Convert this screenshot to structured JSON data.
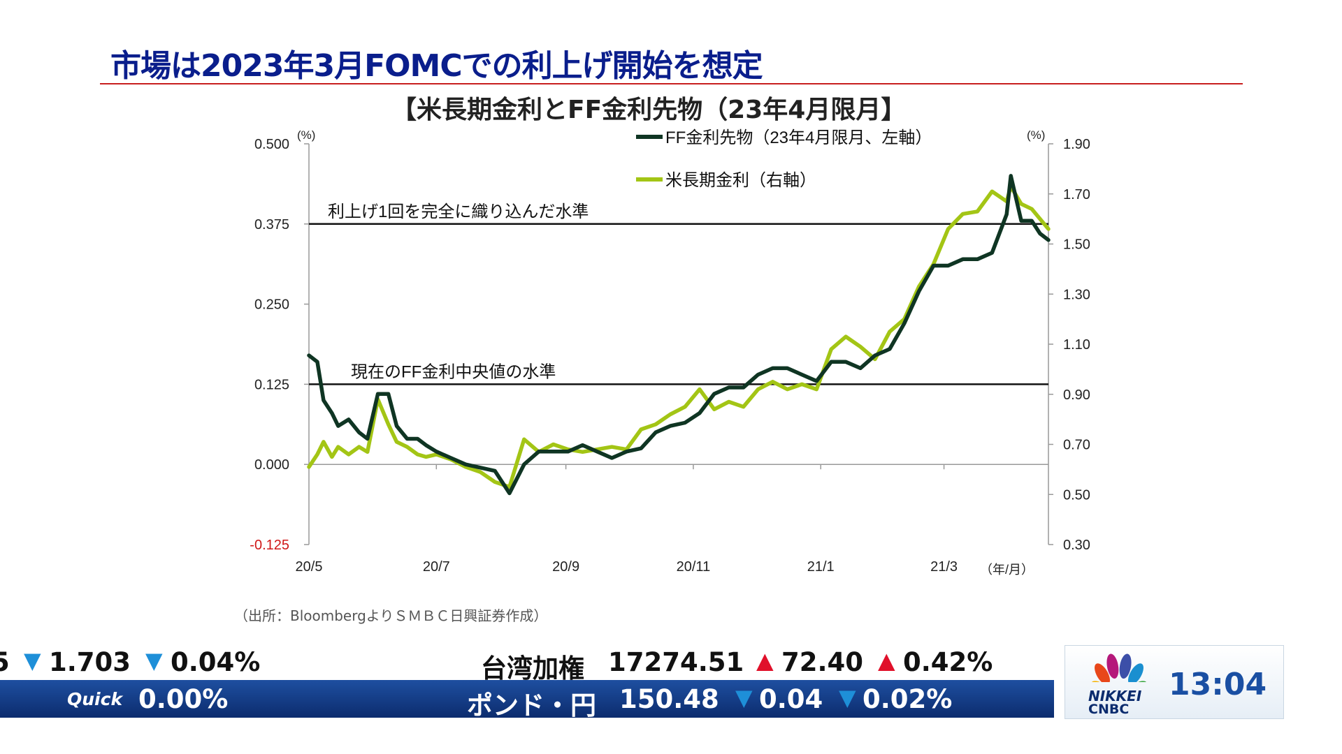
{
  "headline": "市場は2023年3月FOMCでの利上げ開始を想定",
  "subtitle": "【米長期金利とFF金利先物（23年4月限月】",
  "source": "（出所：BloombergよりＳＭＢＣ日興証券作成）",
  "chart_data": {
    "type": "line",
    "title": "【米長期金利とFF金利先物（23年4月限月】",
    "left_axis": {
      "unit": "(%)",
      "range": [
        -0.125,
        0.5
      ],
      "ticks": [
        "0.500",
        "0.375",
        "0.250",
        "0.125",
        "0.000",
        "-0.125"
      ],
      "tick_values": [
        0.5,
        0.375,
        0.25,
        0.125,
        0,
        -0.125
      ]
    },
    "right_axis": {
      "unit": "(%)",
      "range": [
        0.3,
        1.9
      ],
      "ticks": [
        "1.90",
        "1.70",
        "1.50",
        "1.30",
        "1.10",
        "0.90",
        "0.70",
        "0.50",
        "0.30"
      ],
      "tick_values": [
        1.9,
        1.7,
        1.5,
        1.3,
        1.1,
        0.9,
        0.7,
        0.5,
        0.3
      ]
    },
    "x_axis": {
      "unit": "（年/月）",
      "range": [
        "2020-05-01",
        "2021-04-20"
      ],
      "ticks": [
        "20/5",
        "20/7",
        "20/9",
        "20/11",
        "21/1",
        "21/3"
      ],
      "tick_dates": [
        "2020-05-01",
        "2020-07-01",
        "2020-09-01",
        "2020-11-01",
        "2021-01-01",
        "2021-03-01"
      ]
    },
    "reference_lines": [
      {
        "label": "利上げ1回を完全に織り込んだ水準",
        "value": 0.375,
        "axis": "left"
      },
      {
        "label": "現在のFF金利中央値の水準",
        "value": 0.125,
        "axis": "left"
      }
    ],
    "legend_placement": "top-center",
    "grid": false,
    "series": [
      {
        "name": "FF金利先物（23年4月限月、左軸）",
        "axis": "left",
        "color": "#0f3523",
        "x": [
          "2020-05-01",
          "2020-05-05",
          "2020-05-08",
          "2020-05-12",
          "2020-05-15",
          "2020-05-20",
          "2020-05-25",
          "2020-05-29",
          "2020-06-03",
          "2020-06-08",
          "2020-06-12",
          "2020-06-17",
          "2020-06-22",
          "2020-06-26",
          "2020-07-01",
          "2020-07-08",
          "2020-07-15",
          "2020-07-22",
          "2020-07-29",
          "2020-08-05",
          "2020-08-12",
          "2020-08-19",
          "2020-08-26",
          "2020-09-02",
          "2020-09-09",
          "2020-09-16",
          "2020-09-23",
          "2020-09-30",
          "2020-10-07",
          "2020-10-14",
          "2020-10-21",
          "2020-10-28",
          "2020-11-04",
          "2020-11-11",
          "2020-11-18",
          "2020-11-25",
          "2020-12-02",
          "2020-12-09",
          "2020-12-16",
          "2020-12-23",
          "2020-12-30",
          "2021-01-06",
          "2021-01-13",
          "2021-01-20",
          "2021-01-27",
          "2021-02-03",
          "2021-02-10",
          "2021-02-17",
          "2021-02-24",
          "2021-03-03",
          "2021-03-10",
          "2021-03-17",
          "2021-03-24",
          "2021-03-31",
          "2021-04-02",
          "2021-04-07",
          "2021-04-12",
          "2021-04-16",
          "2021-04-20"
        ],
        "values": [
          0.17,
          0.16,
          0.1,
          0.08,
          0.06,
          0.07,
          0.05,
          0.04,
          0.11,
          0.11,
          0.06,
          0.04,
          0.04,
          0.03,
          0.02,
          0.01,
          0.0,
          -0.005,
          -0.01,
          -0.045,
          0.0,
          0.02,
          0.02,
          0.02,
          0.03,
          0.02,
          0.01,
          0.02,
          0.025,
          0.05,
          0.06,
          0.065,
          0.08,
          0.11,
          0.12,
          0.12,
          0.14,
          0.15,
          0.15,
          0.14,
          0.13,
          0.16,
          0.16,
          0.15,
          0.17,
          0.18,
          0.22,
          0.27,
          0.31,
          0.31,
          0.32,
          0.32,
          0.33,
          0.39,
          0.45,
          0.38,
          0.38,
          0.36,
          0.35
        ]
      },
      {
        "name": "米長期金利（右軸）",
        "axis": "right",
        "color": "#a3c515",
        "x": [
          "2020-05-01",
          "2020-05-05",
          "2020-05-08",
          "2020-05-12",
          "2020-05-15",
          "2020-05-20",
          "2020-05-25",
          "2020-05-29",
          "2020-06-03",
          "2020-06-08",
          "2020-06-12",
          "2020-06-17",
          "2020-06-22",
          "2020-06-26",
          "2020-07-01",
          "2020-07-08",
          "2020-07-15",
          "2020-07-22",
          "2020-07-29",
          "2020-08-05",
          "2020-08-12",
          "2020-08-19",
          "2020-08-26",
          "2020-09-02",
          "2020-09-09",
          "2020-09-16",
          "2020-09-23",
          "2020-09-30",
          "2020-10-07",
          "2020-10-14",
          "2020-10-21",
          "2020-10-28",
          "2020-11-04",
          "2020-11-11",
          "2020-11-18",
          "2020-11-25",
          "2020-12-02",
          "2020-12-09",
          "2020-12-16",
          "2020-12-23",
          "2020-12-30",
          "2021-01-06",
          "2021-01-13",
          "2021-01-20",
          "2021-01-27",
          "2021-02-03",
          "2021-02-10",
          "2021-02-17",
          "2021-02-24",
          "2021-03-03",
          "2021-03-10",
          "2021-03-17",
          "2021-03-24",
          "2021-03-31",
          "2021-04-02",
          "2021-04-07",
          "2021-04-12",
          "2021-04-16",
          "2021-04-20"
        ],
        "values": [
          0.61,
          0.66,
          0.71,
          0.65,
          0.69,
          0.66,
          0.69,
          0.67,
          0.88,
          0.78,
          0.71,
          0.69,
          0.66,
          0.65,
          0.66,
          0.64,
          0.61,
          0.59,
          0.55,
          0.53,
          0.72,
          0.67,
          0.7,
          0.68,
          0.67,
          0.68,
          0.69,
          0.68,
          0.76,
          0.78,
          0.82,
          0.85,
          0.92,
          0.84,
          0.87,
          0.85,
          0.92,
          0.95,
          0.92,
          0.94,
          0.92,
          1.08,
          1.13,
          1.09,
          1.04,
          1.15,
          1.2,
          1.33,
          1.42,
          1.56,
          1.62,
          1.63,
          1.71,
          1.67,
          1.73,
          1.66,
          1.64,
          1.6,
          1.56
        ]
      }
    ]
  },
  "ticker": {
    "row1_left_fragment": "5",
    "row1_left_value": "1.703",
    "row1_left_change": "0.04%",
    "row1_right_name": "台湾加権",
    "row1_right_value": "17274.51",
    "row1_right_change": "72.40",
    "row1_right_pct": "0.42%",
    "row2_logo": "Quick",
    "row2_left_pct": "0.00%",
    "row2_right_name": "ポンド・円",
    "row2_right_value": "150.48",
    "row2_right_change": "0.04",
    "row2_right_pct": "0.02%",
    "arrow_up": "▲",
    "arrow_down": "▼",
    "up_color": "#e0102a",
    "down_color": "#1e8fd8"
  },
  "channel": {
    "logo_line1": "NIKKEI",
    "logo_line2": "CNBC",
    "time": "13:04"
  }
}
